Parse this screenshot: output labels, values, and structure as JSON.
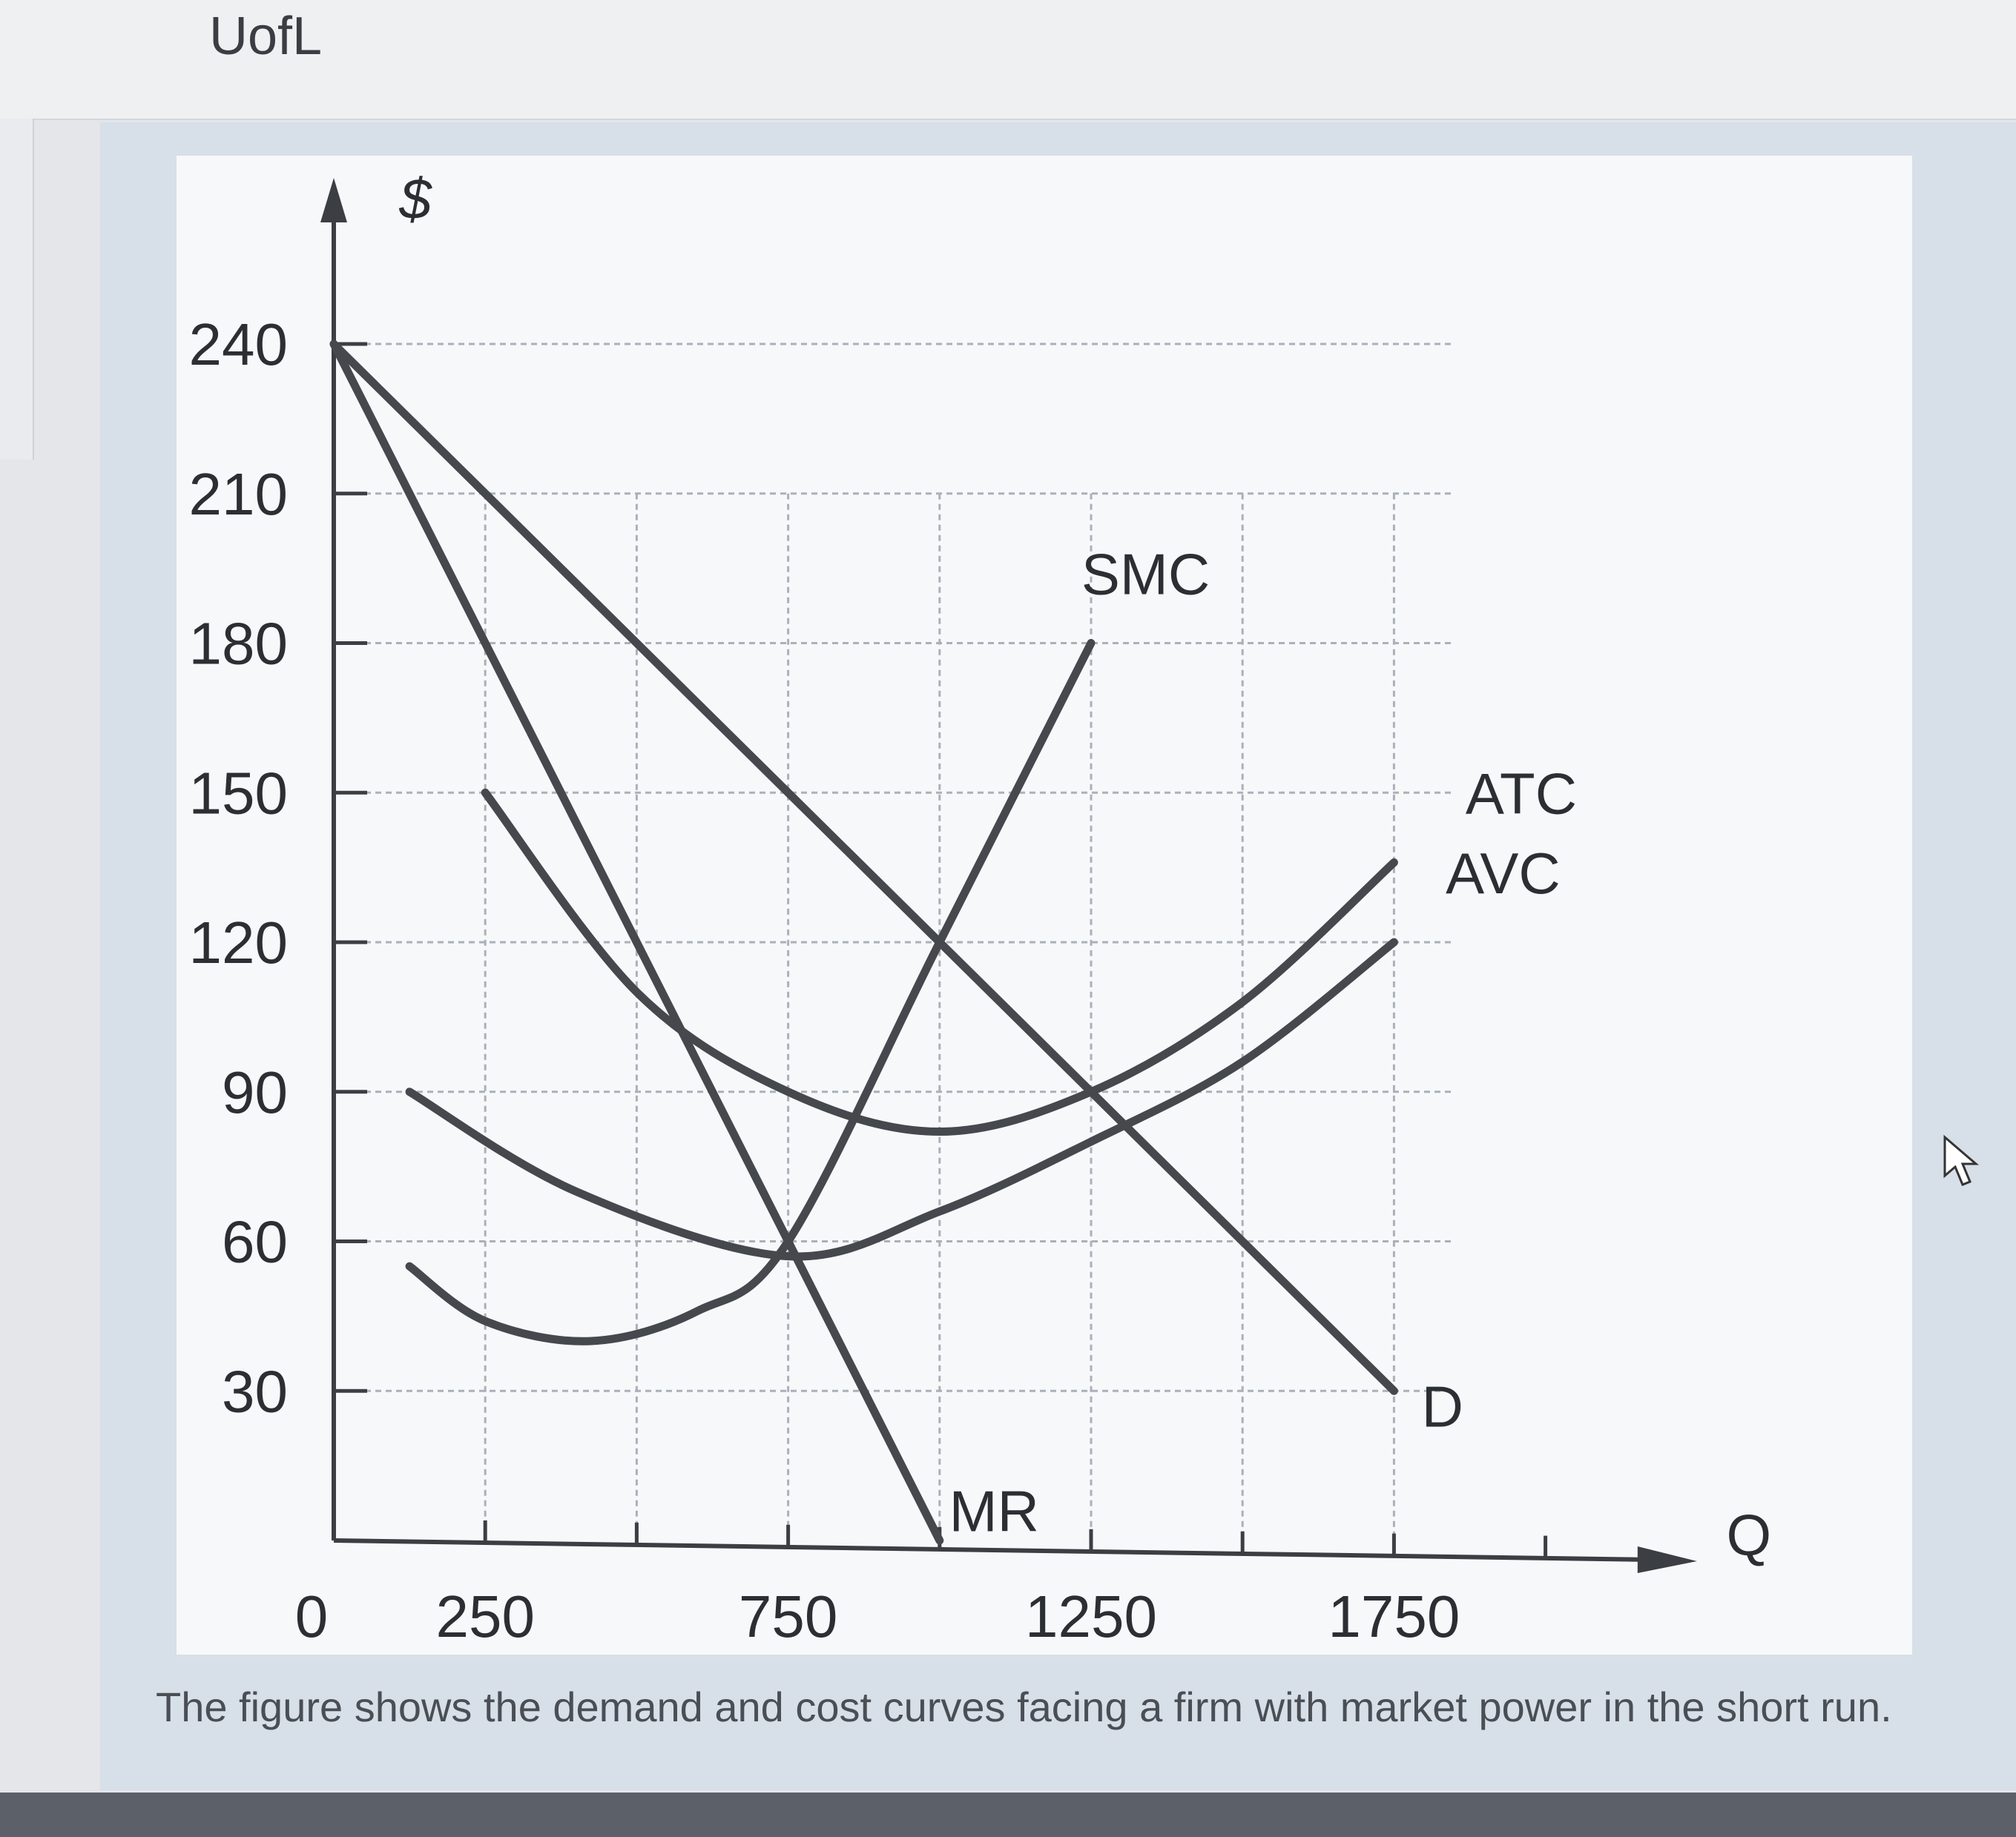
{
  "header": {
    "brand": "UofL"
  },
  "caption": "The figure shows the demand and cost curves facing a firm with market power in the short run.",
  "chart_data": {
    "type": "line",
    "title": "",
    "ylabel": "$",
    "xlabel": "Q",
    "xlim": [
      0,
      2250
    ],
    "ylim": [
      0,
      240
    ],
    "x_ticks": [
      250,
      500,
      750,
      1000,
      1250,
      1500,
      1750,
      2000
    ],
    "x_tick_labels": [
      {
        "x": 0,
        "label": "0"
      },
      {
        "x": 250,
        "label": "250"
      },
      {
        "x": 750,
        "label": "750"
      },
      {
        "x": 1250,
        "label": "1250"
      },
      {
        "x": 1750,
        "label": "1750"
      }
    ],
    "y_ticks": [
      240,
      210,
      180,
      150,
      120,
      90,
      60,
      30
    ],
    "y_tick_labels": [
      "240",
      "210",
      "180",
      "150",
      "120",
      "90",
      "60",
      "30"
    ],
    "grid": true,
    "series": [
      {
        "name": "D",
        "kind": "straight",
        "points": [
          [
            0,
            240
          ],
          [
            1750,
            30
          ]
        ]
      },
      {
        "name": "MR",
        "kind": "straight",
        "points": [
          [
            0,
            240
          ],
          [
            1000,
            0
          ]
        ]
      },
      {
        "name": "SMC",
        "kind": "smooth",
        "points": [
          [
            125,
            55
          ],
          [
            250,
            44
          ],
          [
            425,
            40
          ],
          [
            600,
            46
          ],
          [
            750,
            60
          ],
          [
            1000,
            120
          ],
          [
            1250,
            180
          ]
        ]
      },
      {
        "name": "ATC",
        "kind": "smooth",
        "points": [
          [
            250,
            150
          ],
          [
            500,
            110
          ],
          [
            750,
            90
          ],
          [
            1000,
            82
          ],
          [
            1250,
            90
          ],
          [
            1500,
            108
          ],
          [
            1750,
            136
          ]
        ]
      },
      {
        "name": "AVC",
        "kind": "smooth",
        "points": [
          [
            125,
            90
          ],
          [
            400,
            70
          ],
          [
            750,
            57
          ],
          [
            1000,
            66
          ],
          [
            1250,
            80
          ],
          [
            1500,
            96
          ],
          [
            1750,
            120
          ]
        ]
      }
    ],
    "curve_labels": {
      "SMC": "SMC",
      "ATC": "ATC",
      "AVC": "AVC",
      "D": "D",
      "MR": "MR"
    },
    "colors": {
      "curve": "#45484d",
      "axis": "#3b3e43",
      "grid": "#aab1ba"
    }
  }
}
